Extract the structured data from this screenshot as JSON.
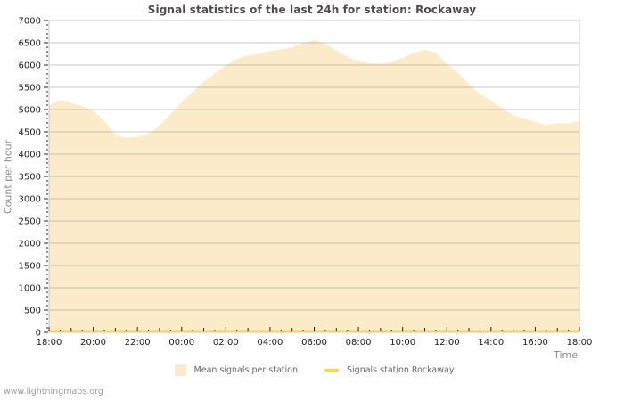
{
  "page": {
    "watermark": "www.lightningmaps.org"
  },
  "chart_data": {
    "type": "area",
    "title": "Signal statistics of the last 24h for station: Rockaway",
    "xlabel": "Time",
    "ylabel": "Count per hour",
    "x_start": "18:00",
    "x_span_hours": 24,
    "x_tick_interval_hours": 2,
    "x_tick_labels": [
      "18:00",
      "20:00",
      "22:00",
      "00:00",
      "02:00",
      "04:00",
      "06:00",
      "08:00",
      "10:00",
      "12:00",
      "14:00",
      "16:00",
      "18:00"
    ],
    "ylim": [
      0,
      7000
    ],
    "y_tick_step": 500,
    "y_minor_tick_step": 100,
    "grid": true,
    "legend_position": "bottom",
    "colors": {
      "plot_border": "#c9c9c9",
      "gridline": "#c9c9c9",
      "tick": "#222222",
      "tick_label": "#1a1a1a",
      "axis_title": "#8a8a8a",
      "title": "#4f4a4a",
      "area_fill": "#FBEBC9",
      "station_line": "#FFD24E"
    },
    "series": [
      {
        "name": "Mean signals per station",
        "type": "area",
        "color": "#FBEBC9",
        "x_step_hours": 0.5,
        "values": [
          5100,
          5210,
          5150,
          5080,
          4970,
          4740,
          4430,
          4360,
          4390,
          4460,
          4640,
          4890,
          5170,
          5400,
          5620,
          5820,
          5990,
          6140,
          6210,
          6260,
          6310,
          6350,
          6400,
          6500,
          6560,
          6480,
          6330,
          6180,
          6090,
          6040,
          6030,
          6060,
          6160,
          6270,
          6340,
          6280,
          6020,
          5830,
          5570,
          5340,
          5200,
          5040,
          4870,
          4800,
          4720,
          4650,
          4690,
          4690,
          4750
        ]
      },
      {
        "name": "Signals station Rockaway",
        "type": "line",
        "color": "#FFD24E",
        "x_step_hours": 24,
        "values": [
          0,
          0
        ]
      }
    ]
  }
}
